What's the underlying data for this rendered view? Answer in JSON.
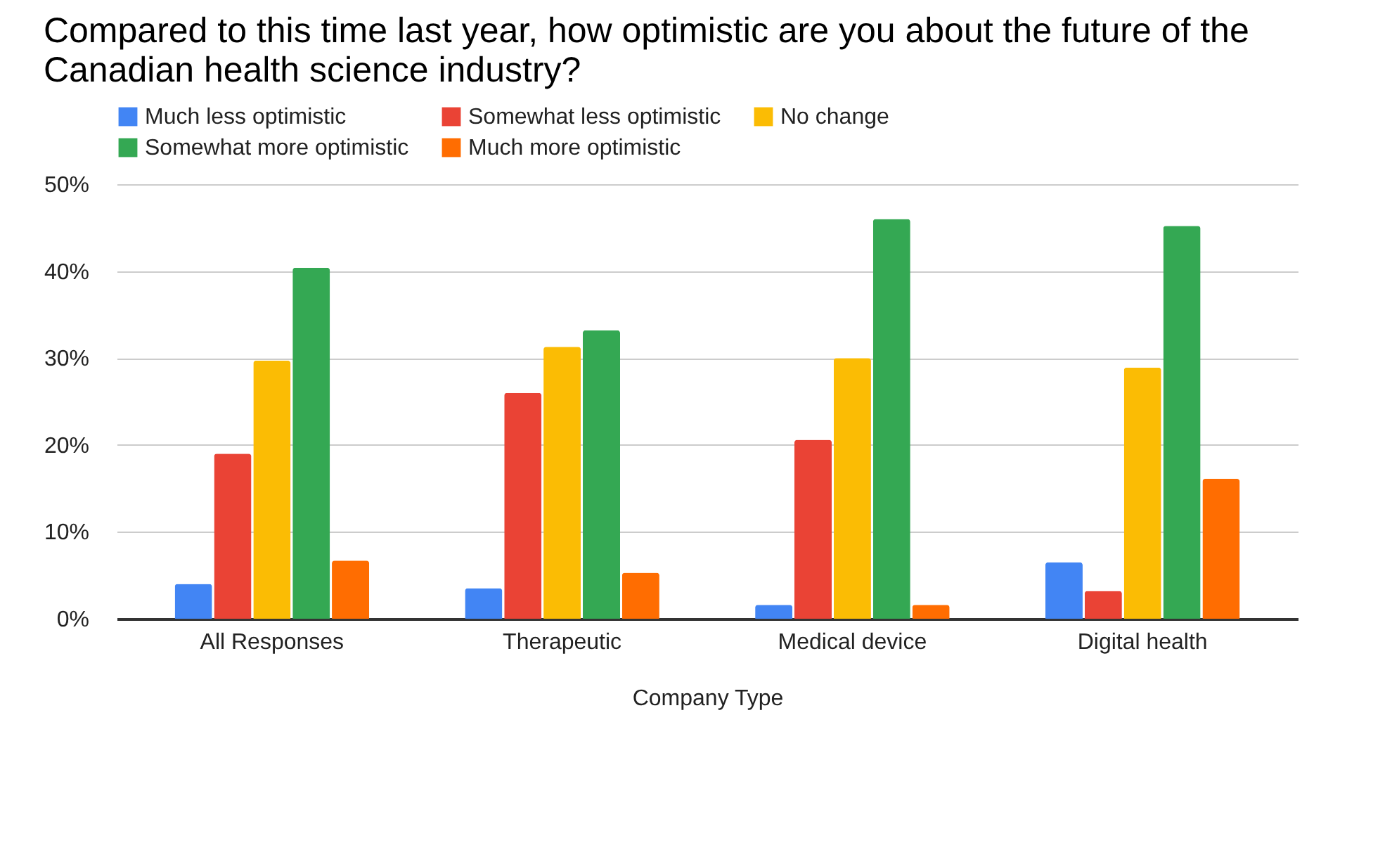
{
  "chart_data": {
    "type": "bar",
    "title": "Compared to this time last year, how optimistic are you about the future of the Canadian health science industry?",
    "xlabel": "Company Type",
    "categories": [
      "All Responses",
      "Therapeutic",
      "Medical device",
      "Digital health"
    ],
    "series": [
      {
        "name": "Much less optimistic",
        "color": "#4285f4",
        "values": [
          4.0,
          3.5,
          1.6,
          6.5
        ]
      },
      {
        "name": "Somewhat less optimistic",
        "color": "#ea4335",
        "values": [
          19.0,
          26.0,
          20.6,
          3.2
        ]
      },
      {
        "name": "No change",
        "color": "#fbbc04",
        "values": [
          29.7,
          31.3,
          30.0,
          28.9
        ]
      },
      {
        "name": "Somewhat more optimistic",
        "color": "#34a853",
        "values": [
          40.4,
          33.2,
          46.0,
          45.2
        ]
      },
      {
        "name": "Much more optimistic",
        "color": "#ff6d01",
        "values": [
          6.7,
          5.3,
          1.6,
          16.1
        ]
      }
    ],
    "ylim": [
      0,
      50
    ],
    "yticks": [
      {
        "value": 0,
        "label": "0%"
      },
      {
        "value": 10,
        "label": "10%"
      },
      {
        "value": 20,
        "label": "20%"
      },
      {
        "value": 30,
        "label": "30%"
      },
      {
        "value": 40,
        "label": "40%"
      },
      {
        "value": 50,
        "label": "50%"
      }
    ],
    "grid": "y",
    "legend": "top"
  }
}
